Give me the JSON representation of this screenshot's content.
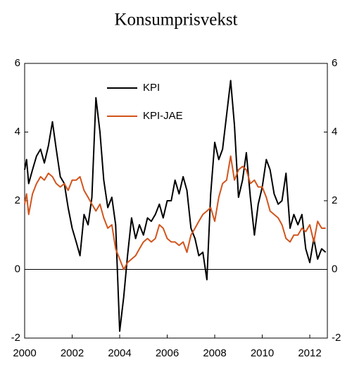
{
  "chart_data": {
    "type": "line",
    "title": "Konsumprisvekst",
    "x": [
      2000.0,
      2000.08,
      2000.17,
      2000.33,
      2000.5,
      2000.67,
      2000.83,
      2001.0,
      2001.17,
      2001.33,
      2001.5,
      2001.67,
      2001.83,
      2002.0,
      2002.17,
      2002.33,
      2002.5,
      2002.67,
      2002.83,
      2003.0,
      2003.17,
      2003.33,
      2003.5,
      2003.67,
      2003.83,
      2004.0,
      2004.17,
      2004.33,
      2004.5,
      2004.67,
      2004.83,
      2005.0,
      2005.17,
      2005.33,
      2005.5,
      2005.67,
      2005.83,
      2006.0,
      2006.17,
      2006.33,
      2006.5,
      2006.67,
      2006.83,
      2007.0,
      2007.17,
      2007.33,
      2007.5,
      2007.67,
      2007.83,
      2008.0,
      2008.17,
      2008.33,
      2008.5,
      2008.67,
      2008.83,
      2009.0,
      2009.17,
      2009.33,
      2009.5,
      2009.67,
      2009.83,
      2010.0,
      2010.17,
      2010.33,
      2010.5,
      2010.67,
      2010.83,
      2011.0,
      2011.17,
      2011.33,
      2011.5,
      2011.67,
      2011.83,
      2012.0,
      2012.17,
      2012.33,
      2012.5,
      2012.67
    ],
    "series": [
      {
        "name": "KPI",
        "color": "#000000",
        "values": [
          2.9,
          3.2,
          2.5,
          2.9,
          3.3,
          3.5,
          3.1,
          3.6,
          4.3,
          3.5,
          2.7,
          2.5,
          1.8,
          1.2,
          0.8,
          0.4,
          1.6,
          1.3,
          2.1,
          5.0,
          4.0,
          2.6,
          1.8,
          2.1,
          1.3,
          -1.8,
          -0.8,
          0.4,
          1.5,
          0.9,
          1.3,
          1.0,
          1.5,
          1.4,
          1.6,
          1.9,
          1.5,
          2.0,
          2.0,
          2.6,
          2.2,
          2.7,
          2.3,
          1.2,
          0.9,
          0.4,
          0.5,
          -0.3,
          2.2,
          3.7,
          3.2,
          3.5,
          4.5,
          5.5,
          4.2,
          2.1,
          2.6,
          3.4,
          2.1,
          1.0,
          1.9,
          2.4,
          3.2,
          2.9,
          2.2,
          1.9,
          2.0,
          2.8,
          1.2,
          1.6,
          1.3,
          1.6,
          0.6,
          0.2,
          0.9,
          0.3,
          0.6,
          0.5
        ]
      },
      {
        "name": "KPI-JAE",
        "color": "#d2541c",
        "values": [
          1.9,
          2.2,
          1.6,
          2.2,
          2.5,
          2.7,
          2.6,
          2.8,
          2.7,
          2.5,
          2.4,
          2.5,
          2.3,
          2.6,
          2.6,
          2.7,
          2.3,
          2.1,
          1.9,
          1.7,
          1.9,
          1.5,
          1.2,
          1.3,
          0.6,
          0.3,
          0.0,
          0.2,
          0.3,
          0.4,
          0.6,
          0.8,
          0.9,
          0.8,
          0.9,
          1.3,
          1.2,
          0.9,
          0.8,
          0.8,
          0.7,
          0.8,
          0.5,
          1.0,
          1.2,
          1.4,
          1.6,
          1.7,
          1.8,
          1.4,
          2.1,
          2.5,
          2.6,
          3.3,
          2.6,
          2.9,
          3.0,
          2.9,
          2.5,
          2.6,
          2.4,
          2.4,
          2.1,
          1.7,
          1.6,
          1.5,
          1.3,
          0.9,
          0.8,
          1.0,
          1.0,
          1.2,
          1.1,
          1.3,
          0.8,
          1.4,
          1.2,
          1.2
        ]
      }
    ],
    "xlim": [
      2000,
      2012.74
    ],
    "xticks": [
      2000,
      2002,
      2004,
      2006,
      2008,
      2010,
      2012
    ],
    "ylim": [
      -2,
      6
    ],
    "yticks": [
      -2,
      0,
      2,
      4,
      6
    ],
    "y2lim": [
      -2,
      6
    ],
    "y2ticks": [
      -2,
      0,
      2,
      4,
      6
    ]
  }
}
